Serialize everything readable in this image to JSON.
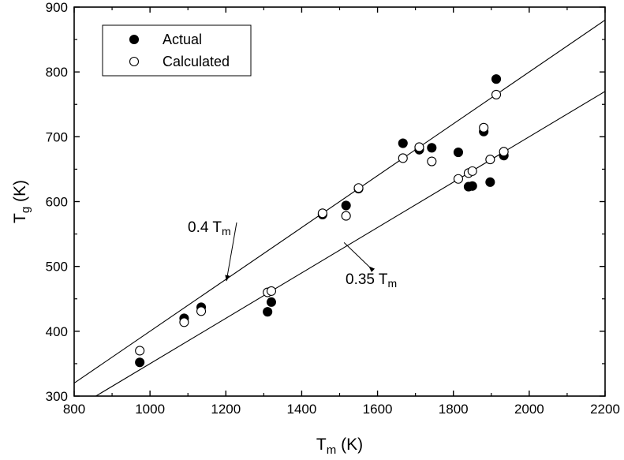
{
  "chart_data": {
    "type": "scatter",
    "title": "",
    "xlabel": {
      "main": "T",
      "sub": "m",
      "unit": " (K)"
    },
    "ylabel": {
      "main": "T",
      "sub": "g",
      "unit": " (K)"
    },
    "xlim": [
      800,
      2200
    ],
    "ylim": [
      300,
      900
    ],
    "xticks": [
      800,
      1000,
      1200,
      1400,
      1600,
      1800,
      2000,
      2200
    ],
    "yticks": [
      300,
      400,
      500,
      600,
      700,
      800,
      900
    ],
    "grid": false,
    "legend": {
      "position": "top-left",
      "entries": [
        {
          "label": "Actual",
          "marker": "filled-circle"
        },
        {
          "label": "Calculated",
          "marker": "open-circle"
        }
      ]
    },
    "series": [
      {
        "name": "Actual",
        "marker": "filled-circle",
        "points": [
          [
            973,
            352
          ],
          [
            1090,
            420
          ],
          [
            1135,
            437
          ],
          [
            1310,
            430
          ],
          [
            1320,
            445
          ],
          [
            1455,
            580
          ],
          [
            1517,
            594
          ],
          [
            1550,
            620
          ],
          [
            1667,
            690
          ],
          [
            1710,
            680
          ],
          [
            1743,
            683
          ],
          [
            1813,
            676
          ],
          [
            1840,
            623
          ],
          [
            1850,
            624
          ],
          [
            1880,
            708
          ],
          [
            1897,
            630
          ],
          [
            1913,
            789
          ],
          [
            1933,
            671
          ]
        ]
      },
      {
        "name": "Calculated",
        "marker": "open-circle",
        "points": [
          [
            973,
            370
          ],
          [
            1090,
            414
          ],
          [
            1135,
            431
          ],
          [
            1310,
            460
          ],
          [
            1320,
            462
          ],
          [
            1455,
            582
          ],
          [
            1517,
            578
          ],
          [
            1550,
            621
          ],
          [
            1667,
            667
          ],
          [
            1710,
            684
          ],
          [
            1743,
            662
          ],
          [
            1813,
            635
          ],
          [
            1840,
            644
          ],
          [
            1850,
            647
          ],
          [
            1880,
            714
          ],
          [
            1897,
            665
          ],
          [
            1913,
            765
          ],
          [
            1933,
            677
          ]
        ]
      }
    ],
    "reference_lines": [
      {
        "factor": 0.4,
        "label": {
          "main": "0.4 T",
          "sub": "m"
        }
      },
      {
        "factor": 0.35,
        "label": {
          "main": "0.35 T",
          "sub": "m"
        }
      }
    ],
    "colors": {
      "axis": "#000000",
      "marker": "#000000",
      "background": "#ffffff"
    }
  }
}
